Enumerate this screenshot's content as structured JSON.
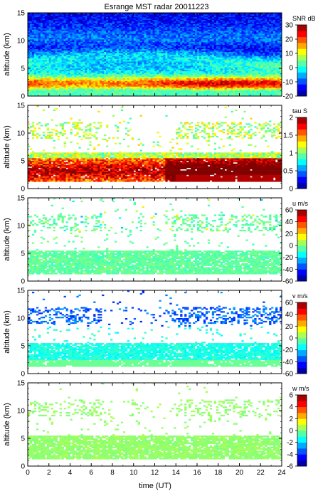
{
  "title": "Esrange MST radar 20011223",
  "chart_data": {
    "type": "heatmap",
    "title": "Esrange MST radar 20011223",
    "xlabel": "time (UT)",
    "xlim": [
      0,
      24
    ],
    "x_ticks": [
      "0",
      "2",
      "4",
      "6",
      "8",
      "10",
      "12",
      "14",
      "16",
      "18",
      "20",
      "22",
      "24"
    ],
    "y_ticks": [
      "0",
      "5",
      "10",
      "15"
    ],
    "panels": [
      {
        "ylabel": "altitude (km)",
        "ylim": [
          0,
          15
        ],
        "colorbar_label": "SNR dB",
        "colorbar_range": [
          -20,
          30
        ],
        "colorbar_ticks": [
          "-20",
          "-10",
          "0",
          "10",
          "20",
          "30"
        ]
      },
      {
        "ylabel": "altitude (km)",
        "ylim": [
          0,
          15
        ],
        "colorbar_label": "tau S",
        "colorbar_range": [
          0,
          2
        ],
        "colorbar_ticks": [
          "0",
          "0.5",
          "1",
          "1.5",
          "2"
        ]
      },
      {
        "ylabel": "altitude (km)",
        "ylim": [
          0,
          15
        ],
        "colorbar_label": "u m/s",
        "colorbar_range": [
          -60,
          60
        ],
        "colorbar_ticks": [
          "-60",
          "-40",
          "-20",
          "0",
          "20",
          "40",
          "60"
        ]
      },
      {
        "ylabel": "altitude (km)",
        "ylim": [
          0,
          15
        ],
        "colorbar_label": "v m/s",
        "colorbar_range": [
          -60,
          60
        ],
        "colorbar_ticks": [
          "-60",
          "-40",
          "-20",
          "0",
          "20",
          "40",
          "60"
        ]
      },
      {
        "ylabel": "altitude (km)",
        "ylim": [
          0,
          15
        ],
        "colorbar_label": "w m/s",
        "colorbar_range": [
          -6,
          6
        ],
        "colorbar_ticks": [
          "-6",
          "-4",
          "-2",
          "0",
          "2",
          "4",
          "6"
        ]
      }
    ]
  }
}
